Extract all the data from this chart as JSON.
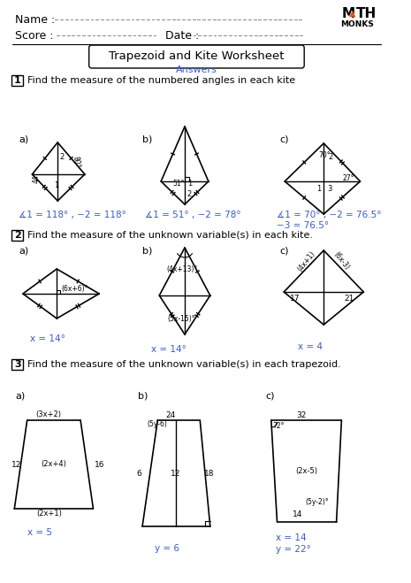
{
  "title": "Trapezoid and Kite Worksheet",
  "subtitle": "Answers",
  "section1_label": "1",
  "section1_text": "Find the measure of the numbered angles in each kite",
  "section2_label": "2",
  "section2_text": "Find the measure of the unknown variable(s) in each kite.",
  "section3_label": "3",
  "section3_text": "Find the measure of the unknown variable(s) in each trapezoid.",
  "ans1a": "∡1 = 118° , −2 = 118°",
  "ans1b": "∡1 = 51° , −2 = 78°",
  "ans1c1": "∡1 = 70° , −2 = 76.5°",
  "ans1c2": "−3 = 76.5°",
  "ans2a": "x = 14°",
  "ans2b": "x = 14°",
  "ans2c": "x = 4",
  "ans3a": "x = 5",
  "ans3b": "y = 6",
  "ans3c1": "x = 14",
  "ans3c2": "y = 22°",
  "bg_color": "#ffffff",
  "text_color": "#000000",
  "answer_color": "#3a5bc7",
  "orange_color": "#e05a1a"
}
